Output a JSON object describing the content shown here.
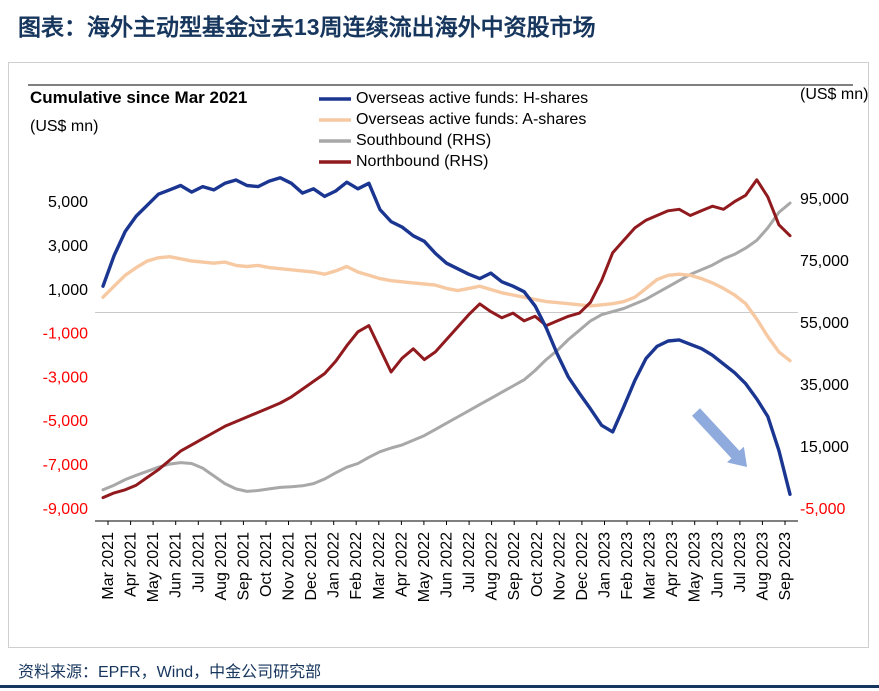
{
  "page": {
    "title": "图表：海外主动型基金过去13周连续流出海外中资股市场",
    "source": "资料来源：EPFR，Wind，中金公司研究部"
  },
  "chart_data": {
    "type": "line",
    "inner_title": "Cumulative since Mar 2021",
    "left_axis_unit": "(US$ mn)",
    "right_axis_unit": "(US$ mn)",
    "legend_position": "top-center",
    "grid": "zero-line-only",
    "negative_tick_color": "#ff0000",
    "x_labels": [
      "Mar 2021",
      "Apr 2021",
      "May 2021",
      "Jun 2021",
      "Jul 2021",
      "Aug 2021",
      "Sep 2021",
      "Oct 2021",
      "Nov 2021",
      "Dec 2021",
      "Jan 2022",
      "Feb 2022",
      "Mar 2022",
      "Apr 2022",
      "May 2022",
      "Jun 2022",
      "Jul 2022",
      "Aug 2022",
      "Sep 2022",
      "Oct 2022",
      "Nov 2022",
      "Dec 2022",
      "Jan 2023",
      "Feb 2023",
      "Mar 2023",
      "Apr 2023",
      "May 2023",
      "Jun 2023",
      "Jul 2023",
      "Aug 2023",
      "Sep 2023"
    ],
    "left_axis": {
      "tick_values": [
        5000,
        3000,
        1000,
        -1000,
        -3000,
        -5000,
        -7000,
        -9000
      ],
      "tick_labels": [
        "5,000",
        "3,000",
        "1,000",
        "-1,000",
        "-3,000",
        "-5,000",
        "-7,000",
        "-9,000"
      ],
      "range": [
        -9500,
        6500
      ]
    },
    "right_axis": {
      "tick_values": [
        95000,
        75000,
        55000,
        35000,
        15000,
        -5000
      ],
      "tick_labels": [
        "95,000",
        "75,000",
        "55,000",
        "35,000",
        "15,000",
        "-5,000"
      ],
      "range": [
        -5000,
        105000
      ]
    },
    "series": [
      {
        "name": "Overseas active funds: H-shares",
        "axis": "left",
        "color": "#1a3691",
        "values": [
          1200,
          2600,
          3700,
          4400,
          4900,
          5400,
          5600,
          5800,
          5500,
          5750,
          5600,
          5900,
          6050,
          5800,
          5750,
          6000,
          6150,
          5900,
          5450,
          5650,
          5300,
          5550,
          5950,
          5650,
          5900,
          4700,
          4150,
          3900,
          3500,
          3250,
          2700,
          2250,
          2000,
          1750,
          1550,
          1800,
          1400,
          1200,
          950,
          300,
          -700,
          -1900,
          -2950,
          -3700,
          -4400,
          -5150,
          -5450,
          -4300,
          -3100,
          -2100,
          -1550,
          -1300,
          -1250,
          -1450,
          -1650,
          -1950,
          -2350,
          -2750,
          -3250,
          -3950,
          -4750,
          -6300,
          -8300
        ]
      },
      {
        "name": "Overseas active funds: A-shares",
        "axis": "left",
        "color": "#f7c9a3",
        "values": [
          700,
          1200,
          1700,
          2050,
          2350,
          2500,
          2550,
          2450,
          2350,
          2300,
          2250,
          2300,
          2150,
          2100,
          2150,
          2050,
          2000,
          1950,
          1900,
          1850,
          1750,
          1900,
          2100,
          1850,
          1700,
          1550,
          1450,
          1400,
          1350,
          1300,
          1250,
          1100,
          1000,
          1100,
          1200,
          1050,
          900,
          800,
          700,
          600,
          500,
          450,
          400,
          350,
          300,
          350,
          400,
          500,
          700,
          1100,
          1500,
          1700,
          1750,
          1700,
          1550,
          1350,
          1100,
          800,
          400,
          -300,
          -1100,
          -1800,
          -2200
        ]
      },
      {
        "name": "Southbound (RHS)",
        "axis": "right",
        "color": "#a8a8a8",
        "values": [
          1500,
          3000,
          4800,
          6200,
          7500,
          8800,
          9800,
          10300,
          10000,
          8500,
          6000,
          3500,
          1800,
          1000,
          1300,
          1800,
          2300,
          2500,
          2800,
          3500,
          5000,
          7000,
          8800,
          10000,
          12000,
          13800,
          15000,
          16000,
          17500,
          19000,
          21000,
          23000,
          25000,
          27000,
          29000,
          31000,
          33000,
          35000,
          37000,
          40000,
          43500,
          46500,
          50000,
          53000,
          56000,
          58000,
          59000,
          60000,
          61500,
          63000,
          65000,
          67000,
          69000,
          71000,
          72500,
          74000,
          76000,
          77500,
          79500,
          82000,
          86000,
          91000,
          94000
        ]
      },
      {
        "name": "Northbound (RHS)",
        "axis": "right",
        "color": "#901a1e",
        "values": [
          -1000,
          500,
          1500,
          3000,
          5500,
          8000,
          11000,
          14000,
          16000,
          18000,
          20000,
          22000,
          23500,
          25000,
          26500,
          28000,
          29500,
          31500,
          34000,
          36500,
          39000,
          43000,
          48000,
          52500,
          54500,
          47000,
          39500,
          44000,
          47000,
          43500,
          46000,
          50000,
          54000,
          58000,
          61500,
          59000,
          57000,
          58500,
          56000,
          57500,
          54500,
          56000,
          57500,
          58500,
          62000,
          69000,
          78000,
          82000,
          86000,
          88500,
          90000,
          91500,
          92000,
          90000,
          91500,
          93000,
          92000,
          94500,
          96500,
          101500,
          96000,
          87000,
          83500
        ]
      }
    ],
    "annotation": {
      "type": "arrow",
      "direction": "down-right",
      "color": "#8faadc"
    }
  }
}
